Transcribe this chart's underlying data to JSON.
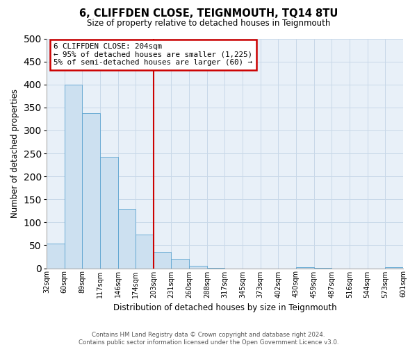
{
  "title": "6, CLIFFDEN CLOSE, TEIGNMOUTH, TQ14 8TU",
  "subtitle": "Size of property relative to detached houses in Teignmouth",
  "xlabel": "Distribution of detached houses by size in Teignmouth",
  "ylabel": "Number of detached properties",
  "footer_line1": "Contains HM Land Registry data © Crown copyright and database right 2024.",
  "footer_line2": "Contains public sector information licensed under the Open Government Licence v3.0.",
  "bin_labels": [
    "32sqm",
    "60sqm",
    "89sqm",
    "117sqm",
    "146sqm",
    "174sqm",
    "203sqm",
    "231sqm",
    "260sqm",
    "288sqm",
    "317sqm",
    "345sqm",
    "373sqm",
    "402sqm",
    "430sqm",
    "459sqm",
    "487sqm",
    "516sqm",
    "544sqm",
    "573sqm",
    "601sqm"
  ],
  "bar_values": [
    53,
    400,
    338,
    243,
    129,
    73,
    35,
    20,
    5,
    1,
    0,
    0,
    0,
    0,
    2,
    1,
    0,
    0,
    0,
    2,
    0
  ],
  "bar_color": "#cce0f0",
  "bar_edge_color": "#5ba3d0",
  "vline_x_index": 6,
  "vline_color": "#cc0000",
  "annotation_title": "6 CLIFFDEN CLOSE: 204sqm",
  "annotation_line1": "← 95% of detached houses are smaller (1,225)",
  "annotation_line2": "5% of semi-detached houses are larger (60) →",
  "annotation_box_color": "#ffffff",
  "annotation_box_edge": "#cc0000",
  "ylim": [
    0,
    500
  ],
  "yticks": [
    0,
    50,
    100,
    150,
    200,
    250,
    300,
    350,
    400,
    450,
    500
  ],
  "plot_bg_color": "#e8f0f8",
  "background_color": "#ffffff",
  "grid_color": "#c8d8e8"
}
